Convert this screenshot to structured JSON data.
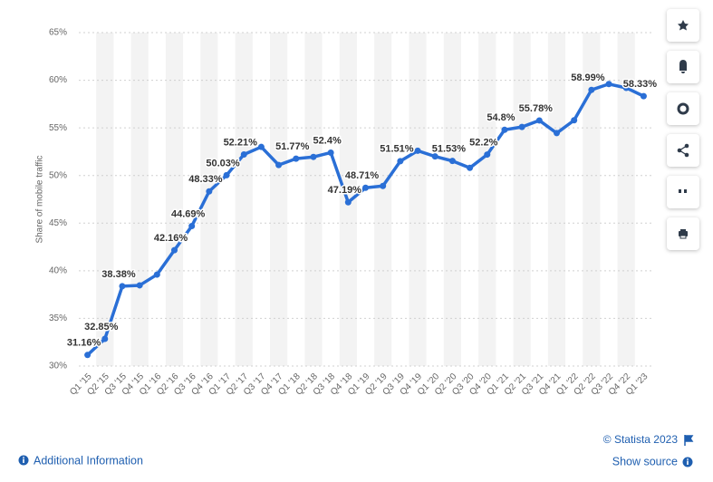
{
  "chart_data": {
    "type": "line",
    "y_label": "Share of mobile traffic",
    "categories": [
      "Q1 '15",
      "Q2 '15",
      "Q3 '15",
      "Q4 '15",
      "Q1 '16",
      "Q2 '16",
      "Q3 '16",
      "Q4 '16",
      "Q1 '17",
      "Q2 '17",
      "Q3 '17",
      "Q4 '17",
      "Q1 '18",
      "Q2 '18",
      "Q3 '18",
      "Q4 '18",
      "Q1 '19",
      "Q2 '19",
      "Q3 '19",
      "Q4 '19",
      "Q1 '20",
      "Q2 '20",
      "Q3 '20",
      "Q4 '20",
      "Q1 '21",
      "Q2 '21",
      "Q3 '21",
      "Q4 '21",
      "Q1 '22",
      "Q2 '22",
      "Q3 '22",
      "Q4 '22",
      "Q1 '23"
    ],
    "series": [
      {
        "color": "#2a6fd6",
        "values": [
          31.16,
          32.85,
          38.38,
          38.47,
          39.6,
          42.16,
          44.69,
          48.33,
          50.03,
          52.21,
          53.0,
          51.1,
          51.77,
          51.95,
          52.4,
          47.19,
          48.71,
          48.9,
          51.51,
          52.6,
          52.0,
          51.53,
          50.8,
          52.2,
          54.8,
          55.1,
          55.78,
          54.45,
          55.8,
          58.99,
          59.6,
          59.2,
          58.33
        ],
        "value_labels": [
          "31.16%",
          "32.85%",
          "38.38%",
          null,
          null,
          "42.16%",
          "44.69%",
          "48.33%",
          "50.03%",
          "52.21%",
          null,
          null,
          "51.77%",
          null,
          "52.4%",
          "47.19%",
          "48.71%",
          null,
          "51.51%",
          null,
          null,
          "51.53%",
          null,
          "52.2%",
          "54.8%",
          null,
          "55.78%",
          null,
          null,
          "58.99%",
          null,
          null,
          "58.33%"
        ]
      }
    ],
    "ylim": [
      30,
      65
    ],
    "yticks": [
      {
        "value": 30,
        "label": "30%"
      },
      {
        "value": 35,
        "label": "35%"
      },
      {
        "value": 40,
        "label": "40%"
      },
      {
        "value": 45,
        "label": "45%"
      },
      {
        "value": 50,
        "label": "50%"
      },
      {
        "value": 55,
        "label": "55%"
      },
      {
        "value": 60,
        "label": "60%"
      },
      {
        "value": 65,
        "label": "65%"
      }
    ],
    "grid": true
  },
  "footer": {
    "copyright": "© Statista 2023",
    "additional_information": "Additional Information",
    "show_source": "Show source"
  }
}
